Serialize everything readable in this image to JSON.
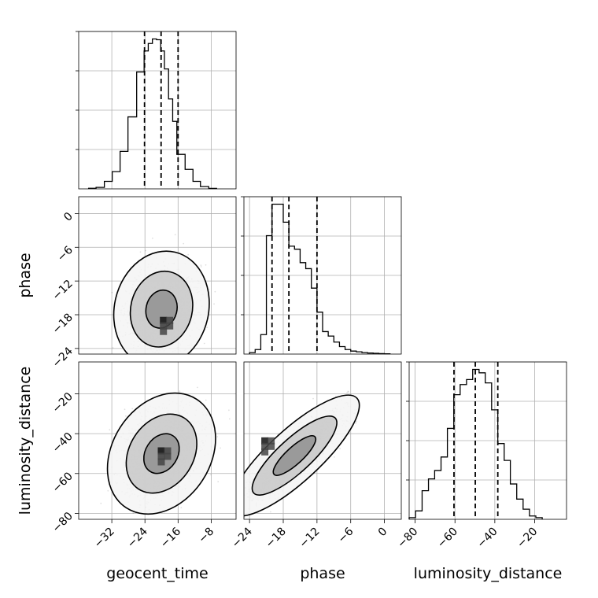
{
  "chart_data": {
    "type": "corner",
    "parameters": [
      "geocent_time",
      "phase",
      "luminosity_distance"
    ],
    "axes": {
      "geocent_time": {
        "range": [
          -40,
          -2
        ],
        "ticks": [
          -32,
          -24,
          -16,
          -8
        ]
      },
      "phase": {
        "range": [
          -25,
          3
        ],
        "ticks": [
          -24,
          -18,
          -12,
          -6,
          0
        ]
      },
      "luminosity_distance": {
        "range": [
          -83,
          -4
        ],
        "ticks": [
          -80,
          -60,
          -40,
          -20
        ]
      }
    },
    "quantile_lines": {
      "geocent_time": [
        -24.1,
        -20.1,
        -16.0
      ],
      "phase": [
        -20.0,
        -17.0,
        -12.0
      ],
      "luminosity_distance": [
        -60.5,
        -49.8,
        -38.5
      ]
    },
    "marginals": {
      "geocent_time": {
        "bin_edges": [
          -37.6,
          -35.8,
          -33.8,
          -31.9,
          -30.0,
          -28.1,
          -26.0,
          -24.2,
          -23.2,
          -22.2,
          -21.2,
          -20.2,
          -19.3,
          -18.3,
          -17.3,
          -16.3,
          -14.3,
          -12.4,
          -10.6,
          -8.6,
          -6.7
        ],
        "counts": [
          0.4,
          1.0,
          5.0,
          11.5,
          25.0,
          48.0,
          78.0,
          92.0,
          97.0,
          100.0,
          99.5,
          92.0,
          80.0,
          60.0,
          45.0,
          23.0,
          13.0,
          5.0,
          1.5,
          0.3
        ]
      },
      "phase": {
        "bin_edges": [
          -24.0,
          -23.0,
          -22.0,
          -21.0,
          -20.0,
          -19.0,
          -18.0,
          -17.0,
          -16.0,
          -15.0,
          -14.0,
          -13.0,
          -12.0,
          -11.0,
          -10.0,
          -9.0,
          -8.0,
          -7.0,
          -6.0,
          -5.0,
          -4.0,
          -3.0,
          -2.0,
          -1.0,
          0.0,
          1.0
        ],
        "counts": [
          1.0,
          3.0,
          13.0,
          79.0,
          100.0,
          100.0,
          88.0,
          72.0,
          70.0,
          61.0,
          57.0,
          44.0,
          28.0,
          15.0,
          12.0,
          8.0,
          5.0,
          3.0,
          2.0,
          1.5,
          1.0,
          0.7,
          0.5,
          0.3,
          0.2
        ]
      },
      "luminosity_distance": {
        "bin_edges": [
          -83.0,
          -79.8,
          -76.5,
          -73.3,
          -70.2,
          -67.0,
          -63.8,
          -60.6,
          -57.4,
          -54.2,
          -51.1,
          -47.9,
          -44.8,
          -41.6,
          -38.5,
          -35.3,
          -32.2,
          -29.0,
          -25.8,
          -22.6,
          -19.4,
          -16.2
        ],
        "counts": [
          1.0,
          5.0,
          17.0,
          24.0,
          29.0,
          37.0,
          54.0,
          74.0,
          80.0,
          83.0,
          89.0,
          87.0,
          81.0,
          65.0,
          45.0,
          35.0,
          21.0,
          12.0,
          6.0,
          2.0,
          1.0
        ]
      }
    },
    "joint_density_levels": [
      0.39,
      0.86,
      0.99
    ],
    "joint_distributions": {
      "phase_vs_geocent_time": {
        "x_mean": -20.0,
        "y_mean": -17.0,
        "x_sd": 3.8,
        "y_sd": 3.4,
        "correlation": 0.1,
        "mode": [
          -18.5,
          -19.5
        ]
      },
      "luminosity_distance_vs_geocent_time": {
        "x_mean": -20.0,
        "y_mean": -50.0,
        "x_sd": 4.3,
        "y_sd": 10.0,
        "correlation": 0.25,
        "mode": [
          -19.0,
          -50.0
        ]
      },
      "luminosity_distance_vs_phase": {
        "x_mean": -16.0,
        "y_mean": -51.0,
        "x_sd": 3.8,
        "y_sd": 10.0,
        "correlation": 0.83,
        "mode": [
          -20.5,
          -45.0
        ]
      }
    }
  }
}
